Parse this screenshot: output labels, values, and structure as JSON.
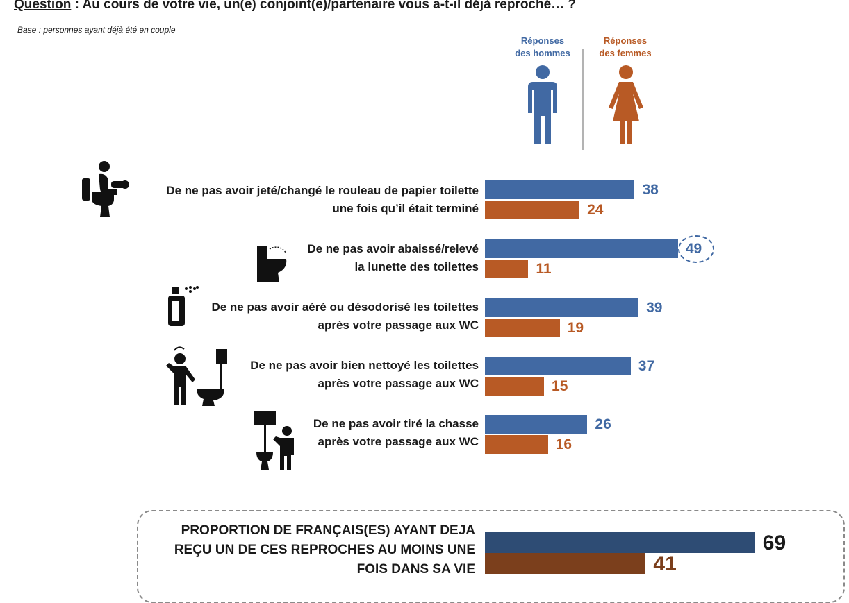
{
  "header": {
    "question_label": "Question",
    "question_text": " : Au cours de votre vie, un(e) conjoint(e)/partenaire vous a-t-il déjà reproché… ?",
    "base": "Base : personnes ayant déjà été en couple"
  },
  "legend": {
    "men": [
      "Réponses",
      "des hommes"
    ],
    "women": [
      "Réponses",
      "des femmes"
    ]
  },
  "colors": {
    "men": "#4169a3",
    "women": "#b85a25",
    "men_total": "#2e4c74",
    "women_total": "#7b3f1c"
  },
  "icons": [
    "person-on-toilet-icon",
    "toilet-seat-icon",
    "air-freshener-icon",
    "cleaning-toilet-icon",
    "flushing-toilet-icon"
  ],
  "chart_data": {
    "type": "bar",
    "orientation": "horizontal",
    "categories": [
      [
        "De ne pas avoir jeté/changé le rouleau de papier toilette",
        "une fois qu’il était terminé"
      ],
      [
        "De ne pas avoir abaissé/relevé",
        "la lunette des toilettes"
      ],
      [
        "De ne pas avoir aéré ou désodorisé les toilettes",
        "après votre passage aux WC"
      ],
      [
        "De ne pas avoir bien nettoyé les toilettes",
        "après votre passage aux WC"
      ],
      [
        "De ne pas avoir tiré la chasse",
        "après votre passage aux WC"
      ]
    ],
    "series": [
      {
        "name": "Réponses des hommes",
        "values": [
          38,
          49,
          39,
          37,
          26
        ]
      },
      {
        "name": "Réponses des femmes",
        "values": [
          24,
          11,
          19,
          15,
          16
        ]
      }
    ],
    "highlighted": {
      "series": 0,
      "index": 1
    },
    "total": {
      "label": [
        "PROPORTION DE FRANÇAIS(ES) AYANT DEJA",
        "REÇU UN DE CES REPROCHES AU MOINS UNE",
        "FOIS DANS SA VIE"
      ],
      "values": [
        69,
        41
      ]
    }
  }
}
